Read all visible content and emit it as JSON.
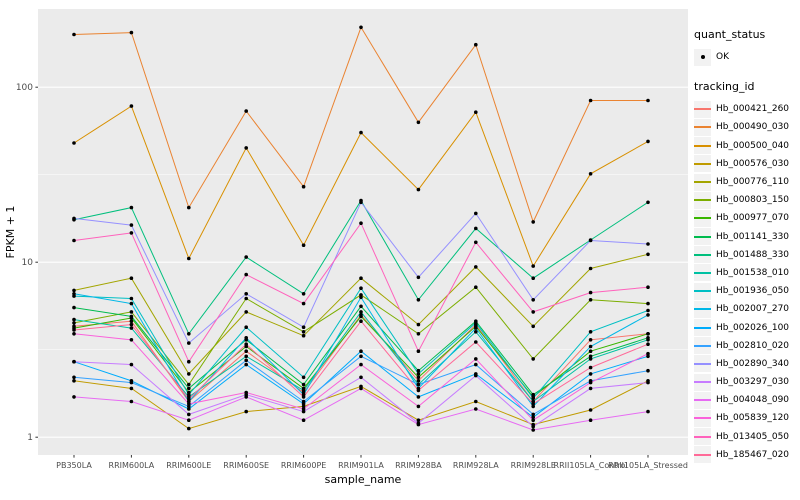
{
  "chart_data": {
    "type": "line",
    "title": "",
    "xlabel": "sample_name",
    "ylabel": "FPKM + 1",
    "y_scale": "log10",
    "y_ticks": [
      1,
      10,
      100
    ],
    "y_tick_labels": [
      "1",
      "10",
      "100"
    ],
    "ylim": [
      0.79,
      276
    ],
    "grid": true,
    "legend_position": "right",
    "panel_bg": "#EBEBEB",
    "grid_color": "#FFFFFF",
    "point_color": "#000000",
    "tick_text_color": "#4D4D4D",
    "categories": [
      "PB350LA",
      "RRIM600LA",
      "RRIM600LE",
      "RRIM600SE",
      "RRIM600PE",
      "RRIM901LA",
      "RRIM928BA",
      "RRIM928LA",
      "RRIM928LE",
      "RRII105LA_Control",
      "RRII105LA_Stressed"
    ],
    "series": [
      {
        "name": "Hb_000421_260",
        "color": "#F8766D",
        "values": [
          4.3,
          4.6,
          1.6,
          3.1,
          1.8,
          5.0,
          2.1,
          4.4,
          1.6,
          3.6,
          3.9
        ]
      },
      {
        "name": "Hb_000490_030",
        "color": "#EA8331",
        "values": [
          200,
          205,
          20.5,
          73,
          27,
          220,
          63,
          175,
          17,
          84,
          84
        ]
      },
      {
        "name": "Hb_000500_040",
        "color": "#D89000",
        "values": [
          48,
          78,
          10.5,
          45,
          12.5,
          55,
          26,
          72,
          9.5,
          32,
          49
        ]
      },
      {
        "name": "Hb_000576_030",
        "color": "#C09B00",
        "values": [
          2.1,
          1.9,
          1.12,
          1.4,
          1.5,
          1.95,
          1.25,
          1.6,
          1.18,
          1.43,
          2.1
        ]
      },
      {
        "name": "Hb_000776_110",
        "color": "#A3A500",
        "values": [
          6.9,
          8.1,
          2.3,
          5.2,
          3.8,
          8.1,
          4.4,
          9.4,
          4.3,
          9.2,
          11.1
        ]
      },
      {
        "name": "Hb_000803_150",
        "color": "#7CAE00",
        "values": [
          4.5,
          5.2,
          2.0,
          6.2,
          4.0,
          6.5,
          3.9,
          7.2,
          2.8,
          6.1,
          5.8
        ]
      },
      {
        "name": "Hb_000977_070",
        "color": "#39B600",
        "values": [
          4.2,
          4.8,
          1.8,
          3.3,
          1.9,
          4.9,
          2.2,
          4.3,
          1.7,
          3.1,
          3.9
        ]
      },
      {
        "name": "Hb_001141_330",
        "color": "#00BB4E",
        "values": [
          5.5,
          4.9,
          1.9,
          3.6,
          2.0,
          5.6,
          2.4,
          4.6,
          1.75,
          2.9,
          3.7
        ]
      },
      {
        "name": "Hb_001488_330",
        "color": "#00BF7D",
        "values": [
          17.5,
          20.5,
          3.9,
          10.7,
          6.6,
          22.5,
          6.1,
          15.6,
          8.1,
          13.4,
          22
        ]
      },
      {
        "name": "Hb_001538_010",
        "color": "#00C1A3",
        "values": [
          4.7,
          4.2,
          1.7,
          2.9,
          1.85,
          5.2,
          2.0,
          4.0,
          1.6,
          2.8,
          3.6
        ]
      },
      {
        "name": "Hb_001936_050",
        "color": "#00BFC4",
        "values": [
          6.4,
          6.2,
          1.75,
          4.25,
          2.2,
          7.1,
          2.3,
          4.5,
          1.67,
          4.0,
          5.3
        ]
      },
      {
        "name": "Hb_002007_270",
        "color": "#00B8E7",
        "values": [
          6.6,
          5.8,
          1.6,
          3.7,
          1.75,
          6.3,
          1.9,
          4.2,
          1.5,
          3.3,
          5.0
        ]
      },
      {
        "name": "Hb_002026_100",
        "color": "#00ACFC",
        "values": [
          2.7,
          2.1,
          1.45,
          2.6,
          1.55,
          3.1,
          1.7,
          2.3,
          1.3,
          2.3,
          2.9
        ]
      },
      {
        "name": "Hb_002810_020",
        "color": "#35A2FF",
        "values": [
          2.2,
          2.05,
          1.5,
          2.75,
          1.6,
          2.9,
          2.0,
          2.6,
          1.35,
          2.1,
          2.4
        ]
      },
      {
        "name": "Hb_002890_340",
        "color": "#9590FF",
        "values": [
          17.8,
          16.3,
          3.45,
          6.6,
          4.25,
          22,
          8.2,
          19,
          6.1,
          13.3,
          12.7
        ]
      },
      {
        "name": "Hb_003297_030",
        "color": "#C77CFF",
        "values": [
          2.7,
          2.6,
          1.35,
          1.75,
          1.4,
          2.2,
          1.2,
          2.25,
          1.15,
          1.9,
          2.05
        ]
      },
      {
        "name": "Hb_004048_090",
        "color": "#E76BF3",
        "values": [
          1.7,
          1.6,
          1.25,
          1.7,
          1.25,
          1.9,
          1.18,
          1.45,
          1.1,
          1.25,
          1.4
        ]
      },
      {
        "name": "Hb_005839_120",
        "color": "#FA62DB",
        "values": [
          3.9,
          3.6,
          1.55,
          1.8,
          1.45,
          2.6,
          1.5,
          2.8,
          1.25,
          2.05,
          3.0
        ]
      },
      {
        "name": "Hb_013405_050",
        "color": "#FF62BC",
        "values": [
          13.3,
          14.7,
          2.7,
          8.5,
          5.8,
          16.7,
          3.1,
          13,
          5.2,
          6.7,
          7.2
        ]
      },
      {
        "name": "Hb_185467_020",
        "color": "#FF6A98",
        "values": [
          4.1,
          4.4,
          1.65,
          3.4,
          1.7,
          4.6,
          1.85,
          3.5,
          1.55,
          2.5,
          3.4
        ]
      }
    ]
  },
  "legend": {
    "quant_status_title": "quant_status",
    "quant_status_items": [
      {
        "label": "OK"
      }
    ],
    "tracking_id_title": "tracking_id"
  },
  "axes": {
    "x_title": "sample_name",
    "y_title": "FPKM + 1"
  }
}
